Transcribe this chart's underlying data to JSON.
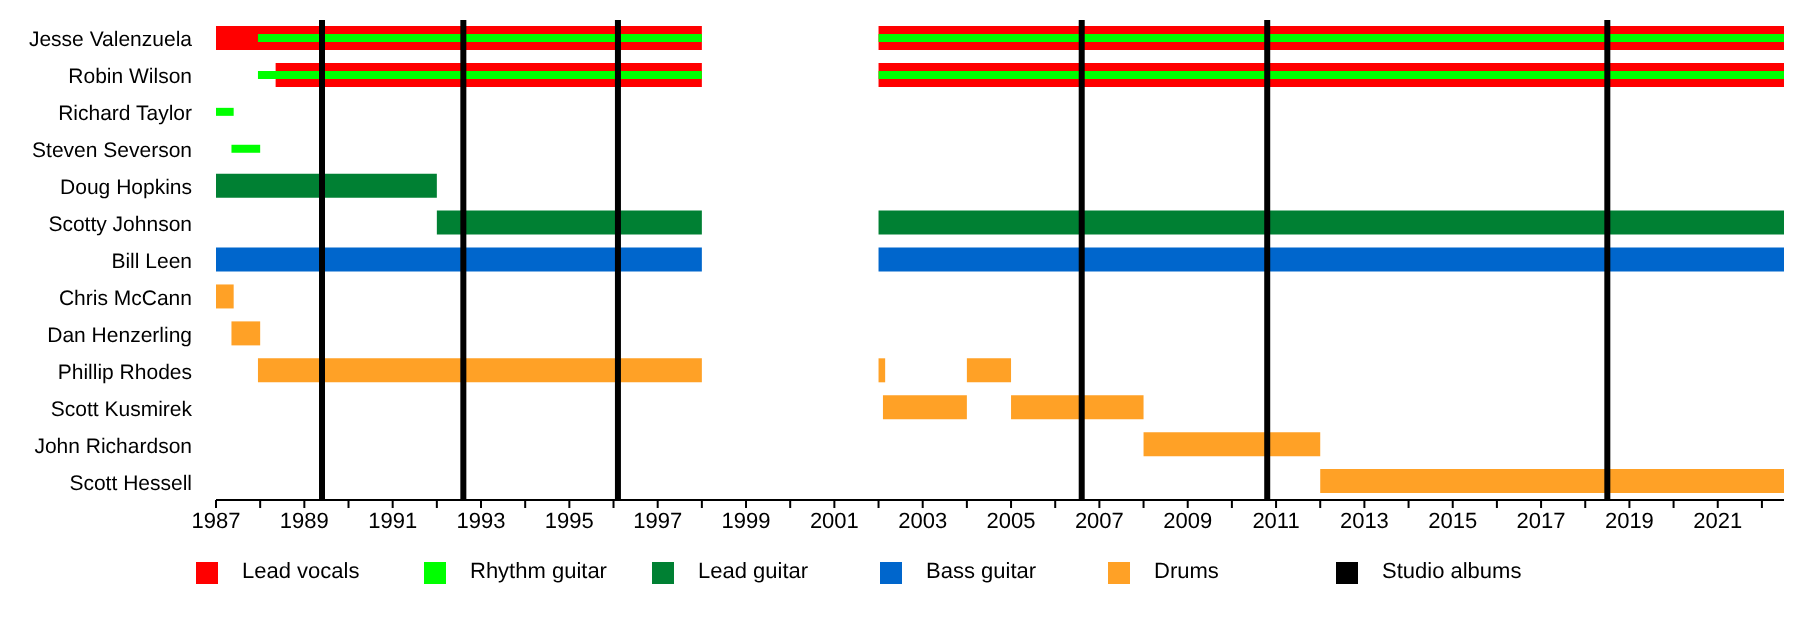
{
  "chart_data": {
    "type": "bar",
    "orientation": "horizontal",
    "categories": [
      "Jesse Valenzuela",
      "Robin Wilson",
      "Richard Taylor",
      "Steven Severson",
      "Doug Hopkins",
      "Scotty Johnson",
      "Bill Leen",
      "Chris McCann",
      "Dan Henzerling",
      "Phillip Rhodes",
      "Scott Kusmirek",
      "John Richardson",
      "Scott Hessell"
    ],
    "series": [
      {
        "name": "Lead vocals",
        "color": "#ff0000",
        "base": [
          1987,
          1988.35,
          null,
          null,
          null,
          null,
          null,
          null,
          null,
          null,
          null,
          null,
          null
        ],
        "values": [
          11,
          9.65,
          null,
          null,
          null,
          null,
          null,
          null,
          null,
          null,
          null,
          null,
          null
        ]
      },
      {
        "color": "#ff0000",
        "base": [
          2002,
          2002,
          null,
          null,
          null,
          null,
          null,
          null,
          null,
          null,
          null,
          null,
          null
        ],
        "values": [
          20.5,
          20.5,
          null,
          null,
          null,
          null,
          null,
          null,
          null,
          null,
          null,
          null,
          null
        ]
      },
      {
        "name": "Rhythm guitar",
        "color": "#00ff00",
        "base": [
          1987.95,
          1987.95,
          1987,
          1987.35,
          null,
          null,
          null,
          null,
          null,
          null,
          null,
          null,
          null
        ],
        "values": [
          10.05,
          10.05,
          0.4,
          0.65,
          null,
          null,
          null,
          null,
          null,
          null,
          null,
          null,
          null
        ]
      },
      {
        "color": "#00ff00",
        "base": [
          2002,
          2002,
          null,
          null,
          null,
          null,
          null,
          null,
          null,
          null,
          null,
          null,
          null
        ],
        "values": [
          20.5,
          20.5,
          null,
          null,
          null,
          null,
          null,
          null,
          null,
          null,
          null,
          null,
          null
        ]
      },
      {
        "name": "Lead guitar",
        "color": "#008033",
        "base": [
          null,
          null,
          null,
          null,
          1987,
          1992,
          null,
          null,
          null,
          null,
          null,
          null,
          null
        ],
        "values": [
          null,
          null,
          null,
          null,
          5,
          6,
          null,
          null,
          null,
          null,
          null,
          null,
          null
        ]
      },
      {
        "color": "#008033",
        "base": [
          null,
          null,
          null,
          null,
          null,
          2002,
          null,
          null,
          null,
          null,
          null,
          null,
          null
        ],
        "values": [
          null,
          null,
          null,
          null,
          null,
          20.5,
          null,
          null,
          null,
          null,
          null,
          null,
          null
        ]
      },
      {
        "name": "Bass guitar",
        "color": "#0066cc",
        "base": [
          null,
          null,
          null,
          null,
          null,
          null,
          1987,
          null,
          null,
          null,
          null,
          null,
          null
        ],
        "values": [
          null,
          null,
          null,
          null,
          null,
          null,
          11,
          null,
          null,
          null,
          null,
          null,
          null
        ]
      },
      {
        "color": "#0066cc",
        "base": [
          null,
          null,
          null,
          null,
          null,
          null,
          2002,
          null,
          null,
          null,
          null,
          null,
          null
        ],
        "values": [
          null,
          null,
          null,
          null,
          null,
          null,
          20.5,
          null,
          null,
          null,
          null,
          null,
          null
        ]
      },
      {
        "name": "Drums",
        "color": "#ffa126",
        "base": [
          null,
          null,
          null,
          null,
          null,
          null,
          null,
          1987,
          1987.35,
          1987.95,
          2002.1,
          2008,
          2012
        ],
        "values": [
          null,
          null,
          null,
          null,
          null,
          null,
          null,
          0.4,
          0.65,
          10.05,
          1.9,
          4,
          10.5
        ]
      },
      {
        "color": "#ffa126",
        "base": [
          null,
          null,
          null,
          null,
          null,
          null,
          null,
          null,
          null,
          2002,
          2005,
          null,
          null
        ],
        "values": [
          null,
          null,
          null,
          null,
          null,
          null,
          null,
          null,
          null,
          0.15,
          3,
          null,
          null
        ]
      },
      {
        "color": "#ffa126",
        "base": [
          null,
          null,
          null,
          null,
          null,
          null,
          null,
          null,
          null,
          2004,
          null,
          null,
          null
        ],
        "values": [
          null,
          null,
          null,
          null,
          null,
          null,
          null,
          null,
          null,
          1,
          null,
          null,
          null
        ]
      }
    ],
    "ref_lines": [
      {
        "axis": "x",
        "value": 1989.4,
        "label": "Studio albums",
        "color": "#000000"
      },
      {
        "axis": "x",
        "value": 1992.6,
        "color": "#000000"
      },
      {
        "axis": "x",
        "value": 1996.1,
        "color": "#000000"
      },
      {
        "axis": "x",
        "value": 2006.6,
        "color": "#000000"
      },
      {
        "axis": "x",
        "value": 2010.8,
        "color": "#000000"
      },
      {
        "axis": "x",
        "value": 2018.5,
        "color": "#000000"
      }
    ],
    "xlim": [
      1987,
      2022.5
    ],
    "xticks": [
      1987,
      {
        "value": 1988,
        "label": null
      },
      1989,
      {
        "value": 1990,
        "label": null
      },
      1991,
      {
        "value": 1992,
        "label": null
      },
      1993,
      {
        "value": 1994,
        "label": null
      },
      1995,
      {
        "value": 1996,
        "label": null
      },
      1997,
      {
        "value": 1998,
        "label": null
      },
      1999,
      {
        "value": 2000,
        "label": null
      },
      2001,
      {
        "value": 2002,
        "label": null
      },
      2003,
      {
        "value": 2004,
        "label": null
      },
      2005,
      {
        "value": 2006,
        "label": null
      },
      2007,
      {
        "value": 2008,
        "label": null
      },
      2009,
      {
        "value": 2010,
        "label": null
      },
      2011,
      {
        "value": 2012,
        "label": null
      },
      2013,
      {
        "value": 2014,
        "label": null
      },
      2015,
      {
        "value": 2016,
        "label": null
      },
      2017,
      {
        "value": 2018,
        "label": null
      },
      2019,
      {
        "value": 2020,
        "label": null
      },
      2021,
      {
        "value": 2022,
        "label": null
      }
    ],
    "legend": "bottom"
  }
}
